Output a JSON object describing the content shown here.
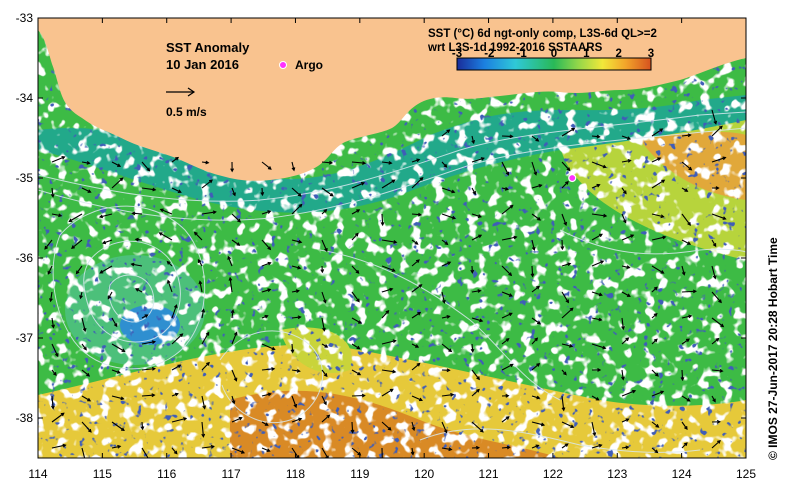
{
  "map": {
    "lon_range": [
      114,
      125
    ],
    "lat_range": [
      -38.5,
      -33
    ],
    "x_ticks": [
      114,
      115,
      116,
      117,
      118,
      119,
      120,
      121,
      122,
      123,
      124,
      125
    ],
    "y_ticks": [
      -33,
      -34,
      -35,
      -36,
      -37,
      -38
    ],
    "title": "SST Anomaly",
    "date": "10 Jan 2016",
    "vector_scale_label": "0.5 m/s",
    "argo_label": "Argo",
    "argo_position": {
      "lon": 122.3,
      "lat": -35.0
    },
    "land_color": "#f9c38f",
    "missing_color": "#ffffff",
    "masked_color": "#0c1d7a"
  },
  "colorbar": {
    "title_line1": "SST (°C) 6d ngt-only comp, L3S-6d QL>=2",
    "title_line2": "wrt L3S-1d 1992-2016 SSTAARS",
    "ticks": [
      "-3",
      "-2",
      "-1",
      "0",
      "1",
      "2",
      "3"
    ],
    "range": [
      -3,
      3
    ],
    "colors": [
      "#1a2c9a",
      "#1b7fe0",
      "#2fc8d8",
      "#29b957",
      "#8fd64a",
      "#f2e83a",
      "#f2a42a",
      "#d6521f"
    ]
  },
  "credit": "©  IMOS 27-Jun-2017 20:28 Hobart Time"
}
